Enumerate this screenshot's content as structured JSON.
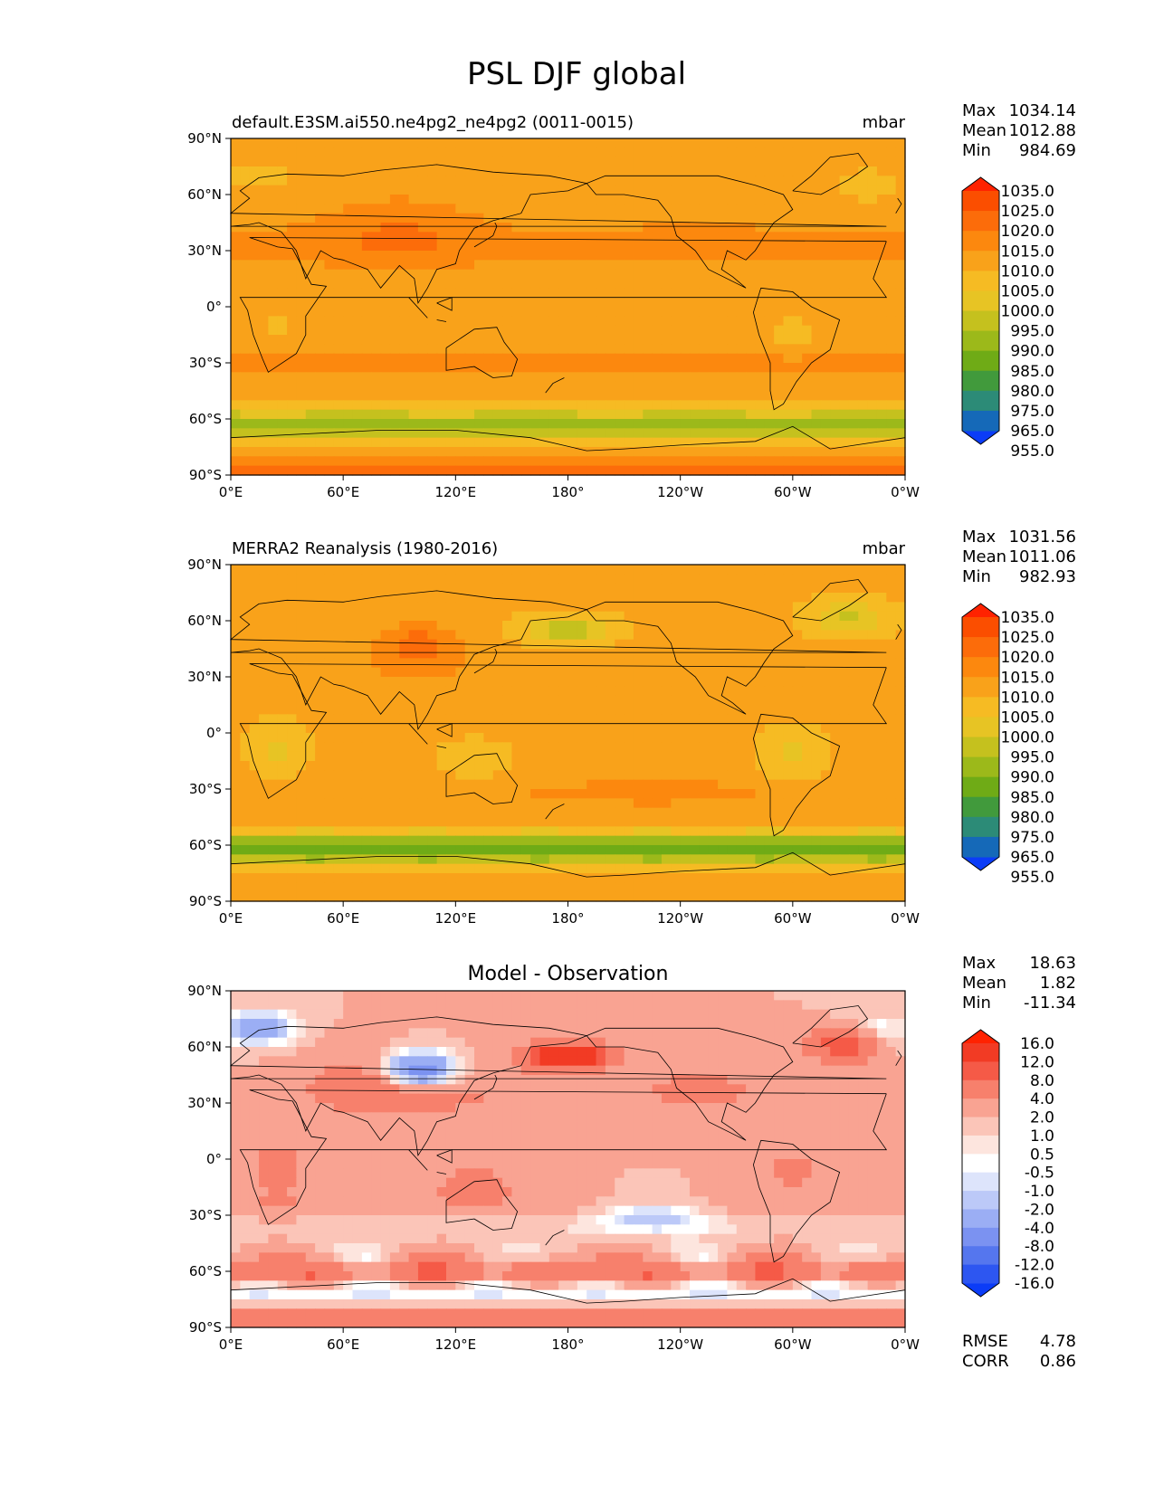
{
  "title": "PSL DJF global",
  "panels": [
    {
      "name": "test",
      "left_title": "default.E3SM.ai550.ne4pg2_ne4pg2 (0011-0015)",
      "center_title": "",
      "right_title": "mbar",
      "stats": [
        {
          "label": "Max",
          "value": "1034.14"
        },
        {
          "label": "Mean",
          "value": "1012.88"
        },
        {
          "label": "Min",
          "value": "984.69"
        }
      ],
      "colorbar_labels": [
        "1035.0",
        "1025.0",
        "1020.0",
        "1015.0",
        "1010.0",
        "1005.0",
        "1000.0",
        "995.0",
        "990.0",
        "985.0",
        "980.0",
        "975.0",
        "965.0",
        "955.0"
      ],
      "extra_stats": []
    },
    {
      "name": "reference",
      "left_title": "MERRA2 Reanalysis (1980-2016)",
      "center_title": "",
      "right_title": "mbar",
      "stats": [
        {
          "label": "Max",
          "value": "1031.56"
        },
        {
          "label": "Mean",
          "value": "1011.06"
        },
        {
          "label": "Min",
          "value": "982.93"
        }
      ],
      "colorbar_labels": [
        "1035.0",
        "1025.0",
        "1020.0",
        "1015.0",
        "1010.0",
        "1005.0",
        "1000.0",
        "995.0",
        "990.0",
        "985.0",
        "980.0",
        "975.0",
        "965.0",
        "955.0"
      ],
      "extra_stats": []
    },
    {
      "name": "difference",
      "left_title": "",
      "center_title": "Model - Observation",
      "right_title": "",
      "stats": [
        {
          "label": "Max",
          "value": "18.63"
        },
        {
          "label": "Mean",
          "value": "1.82"
        },
        {
          "label": "Min",
          "value": "-11.34"
        }
      ],
      "colorbar_labels": [
        "16.0",
        "12.0",
        "8.0",
        "4.0",
        "2.0",
        "1.0",
        "0.5",
        "-0.5",
        "-1.0",
        "-2.0",
        "-4.0",
        "-8.0",
        "-12.0",
        "-16.0"
      ],
      "extra_stats": [
        {
          "label": "RMSE",
          "value": "4.78"
        },
        {
          "label": "CORR",
          "value": "0.86"
        }
      ]
    }
  ],
  "axes": {
    "lat_ticks": [
      "90°N",
      "60°N",
      "30°N",
      "0°",
      "30°S",
      "60°S",
      "90°S"
    ],
    "lon_ticks": [
      "0°E",
      "60°E",
      "120°E",
      "180°",
      "120°W",
      "60°W",
      "0°W"
    ]
  },
  "colors": {
    "psl": [
      "#ff2200",
      "#fb4e00",
      "#fc6c0a",
      "#fc880e",
      "#f9a21a",
      "#f6bb23",
      "#e7c424",
      "#c5c11e",
      "#9cb91a",
      "#6fab16",
      "#419a3c",
      "#2c8b77",
      "#1569b8",
      "#0b3cf7"
    ],
    "diff": [
      "#ff2200",
      "#f23b24",
      "#f55a47",
      "#f7806c",
      "#f9a392",
      "#fbc5b8",
      "#fde5de",
      "#ffffff",
      "#dde4fb",
      "#bcc9f8",
      "#9baef4",
      "#7b92f1",
      "#5576ee",
      "#2d56f1",
      "#0b3cf7"
    ]
  }
}
